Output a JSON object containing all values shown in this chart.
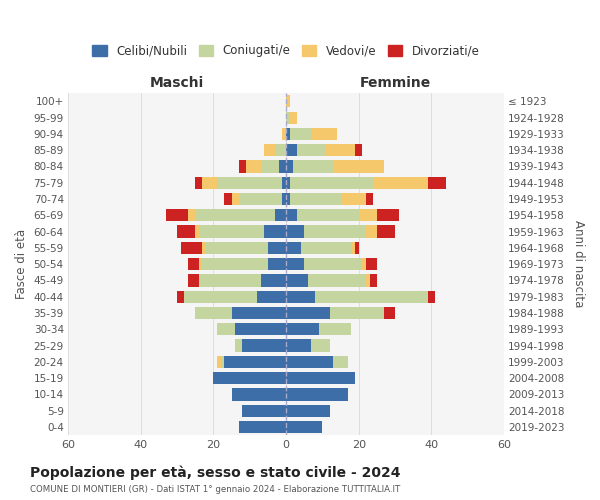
{
  "age_groups": [
    "0-4",
    "5-9",
    "10-14",
    "15-19",
    "20-24",
    "25-29",
    "30-34",
    "35-39",
    "40-44",
    "45-49",
    "50-54",
    "55-59",
    "60-64",
    "65-69",
    "70-74",
    "75-79",
    "80-84",
    "85-89",
    "90-94",
    "95-99",
    "100+"
  ],
  "birth_years": [
    "2019-2023",
    "2014-2018",
    "2009-2013",
    "2004-2008",
    "1999-2003",
    "1994-1998",
    "1989-1993",
    "1984-1988",
    "1979-1983",
    "1974-1978",
    "1969-1973",
    "1964-1968",
    "1959-1963",
    "1954-1958",
    "1949-1953",
    "1944-1948",
    "1939-1943",
    "1934-1938",
    "1929-1933",
    "1924-1928",
    "≤ 1923"
  ],
  "colors": {
    "celibi": "#3d6ea8",
    "coniugati": "#c5d5a0",
    "vedovi": "#f5c96b",
    "divorziati": "#cc2222"
  },
  "maschi": {
    "celibi": [
      13,
      12,
      15,
      20,
      17,
      12,
      14,
      15,
      8,
      7,
      5,
      5,
      6,
      3,
      1,
      1,
      2,
      0,
      0,
      0,
      0
    ],
    "coniugati": [
      0,
      0,
      0,
      0,
      1,
      2,
      5,
      10,
      20,
      17,
      18,
      17,
      18,
      22,
      12,
      18,
      5,
      3,
      0,
      0,
      0
    ],
    "vedovi": [
      0,
      0,
      0,
      0,
      1,
      0,
      0,
      0,
      0,
      0,
      1,
      1,
      1,
      2,
      2,
      4,
      4,
      3,
      1,
      0,
      0
    ],
    "divorziati": [
      0,
      0,
      0,
      0,
      0,
      0,
      0,
      0,
      2,
      3,
      3,
      6,
      5,
      6,
      2,
      2,
      2,
      0,
      0,
      0,
      0
    ]
  },
  "femmine": {
    "celibi": [
      10,
      12,
      17,
      19,
      13,
      7,
      9,
      12,
      8,
      6,
      5,
      4,
      5,
      3,
      1,
      1,
      2,
      3,
      1,
      0,
      0
    ],
    "coniugati": [
      0,
      0,
      0,
      0,
      4,
      5,
      9,
      15,
      31,
      16,
      16,
      14,
      17,
      17,
      14,
      23,
      11,
      8,
      6,
      1,
      0
    ],
    "vedovi": [
      0,
      0,
      0,
      0,
      0,
      0,
      0,
      0,
      0,
      1,
      1,
      1,
      3,
      5,
      7,
      15,
      14,
      8,
      7,
      2,
      1
    ],
    "divorziati": [
      0,
      0,
      0,
      0,
      0,
      0,
      0,
      3,
      2,
      2,
      3,
      1,
      5,
      6,
      2,
      5,
      0,
      2,
      0,
      0,
      0
    ]
  },
  "title": "Popolazione per età, sesso e stato civile - 2024",
  "subtitle": "COMUNE DI MONTIERI (GR) - Dati ISTAT 1° gennaio 2024 - Elaborazione TUTTITALIA.IT",
  "xlabel_left": "Maschi",
  "xlabel_right": "Femmine",
  "ylabel_left": "Fasce di età",
  "ylabel_right": "Anni di nascita",
  "xlim": 60,
  "legend_labels": [
    "Celibi/Nubili",
    "Coniugati/e",
    "Vedovi/e",
    "Divorziati/e"
  ],
  "bg_color": "#ffffff",
  "plot_bg_color": "#f5f5f5",
  "grid_color": "#cccccc"
}
